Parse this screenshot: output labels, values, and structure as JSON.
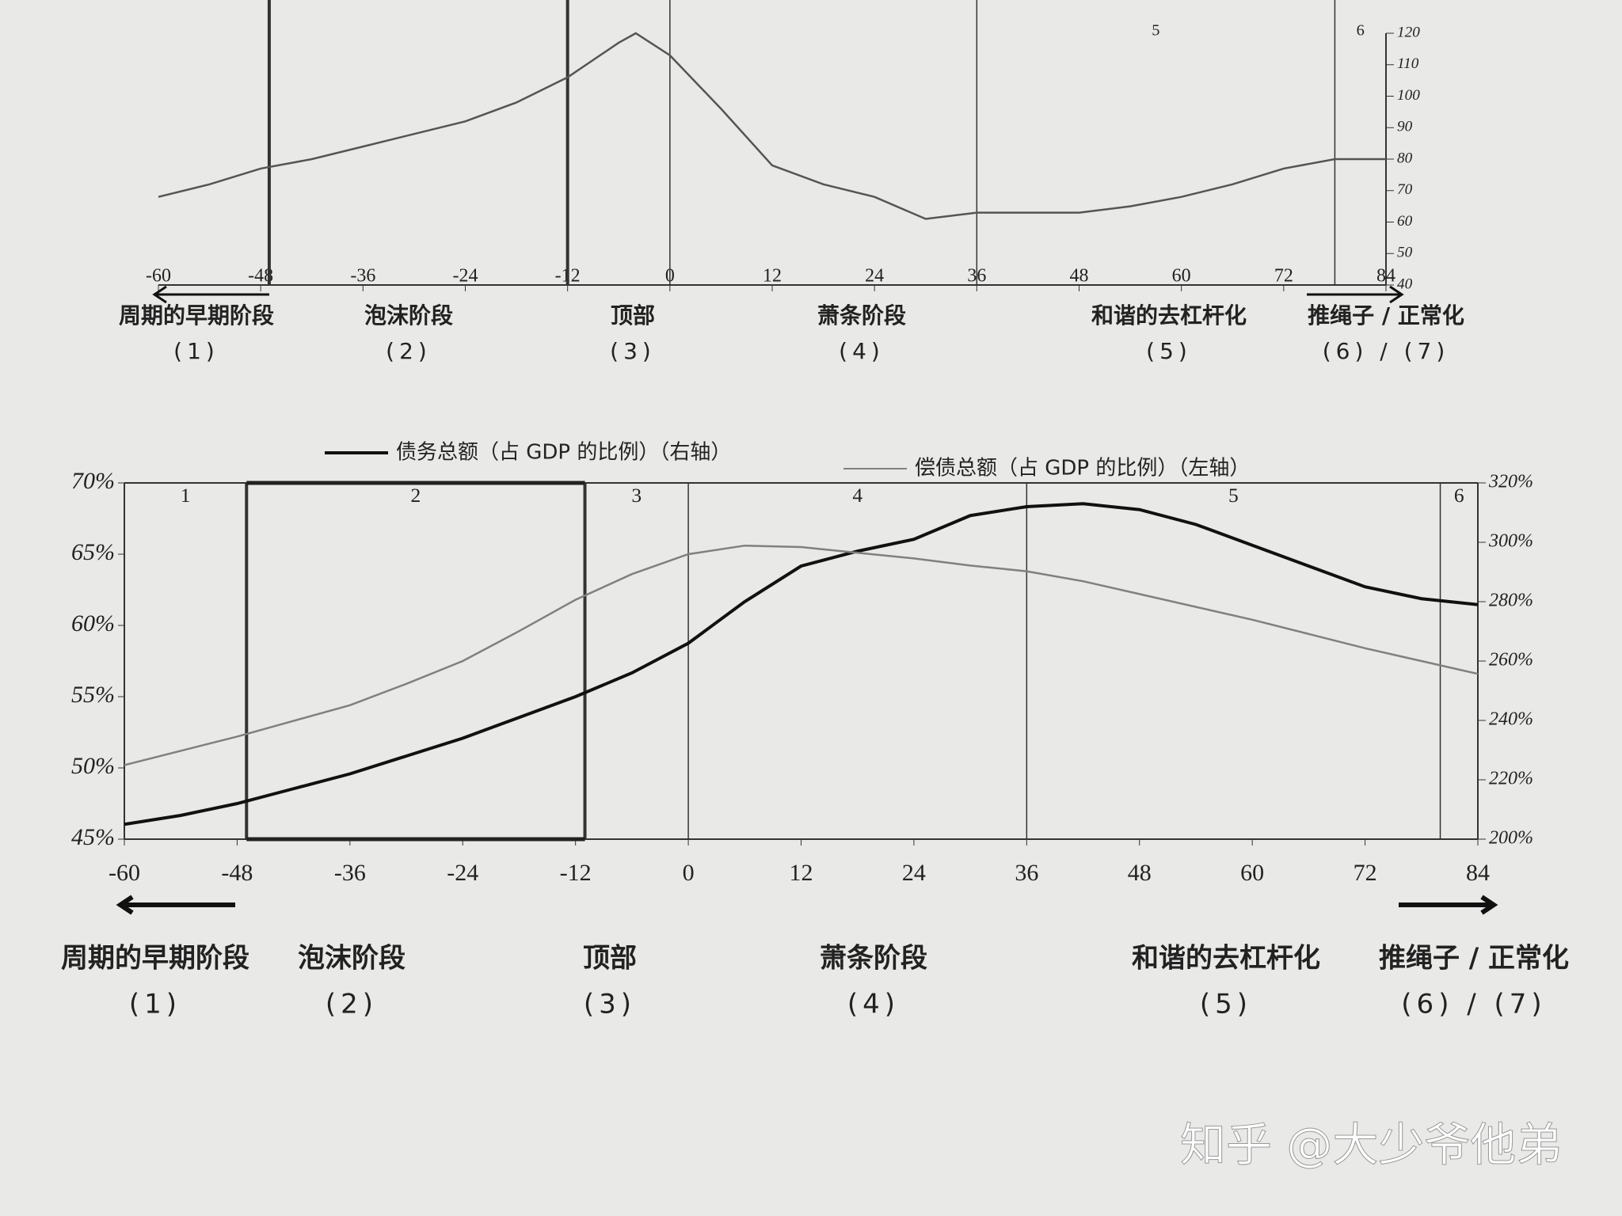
{
  "chart_data": [
    {
      "type": "line",
      "x": [
        -60,
        -54,
        -48,
        -42,
        -36,
        -30,
        -24,
        -18,
        -12,
        -6,
        -4,
        0,
        6,
        12,
        18,
        24,
        30,
        36,
        42,
        48,
        54,
        60,
        66,
        72,
        78,
        84
      ],
      "series": [
        {
          "color": "#555555",
          "axis": "y2",
          "values": [
            68,
            72,
            77,
            80,
            84,
            88,
            92,
            98,
            106,
            117,
            120,
            113,
            96,
            78,
            72,
            68,
            61,
            63,
            63,
            63,
            65,
            68,
            72,
            77,
            80,
            80
          ]
        }
      ],
      "xlim": [
        -60,
        84
      ],
      "xticks": [
        -60,
        -48,
        -36,
        -24,
        -12,
        0,
        12,
        24,
        36,
        48,
        60,
        72,
        84
      ],
      "y2lim": [
        40,
        120
      ],
      "y2ticks": [
        40,
        50,
        60,
        70,
        80,
        90,
        100,
        110,
        120
      ],
      "dividers": [
        -47,
        -12,
        0,
        36,
        78
      ],
      "region_labels": [
        "5",
        "6"
      ],
      "annotations": [
        {
          "name": "周期的早期阶段",
          "number": "(1)"
        },
        {
          "name": "泡沫阶段",
          "number": "(2)"
        },
        {
          "name": "顶部",
          "number": "(3)"
        },
        {
          "name": "萧条阶段",
          "number": "(4)"
        },
        {
          "name": "和谐的去杠杆化",
          "number": "(5)"
        },
        {
          "name": "推绳子 / 正常化",
          "number": "(6) / (7)"
        }
      ]
    },
    {
      "type": "line",
      "x": [
        -60,
        -54,
        -48,
        -42,
        -36,
        -30,
        -24,
        -18,
        -12,
        -6,
        0,
        6,
        12,
        18,
        24,
        30,
        36,
        42,
        48,
        54,
        60,
        66,
        72,
        78,
        84
      ],
      "series": [
        {
          "name": "债务总额（占 GDP 的比例）（右轴）",
          "color": "#111111",
          "axis": "y2",
          "values": [
            205,
            208,
            212,
            217,
            222,
            228,
            234,
            241,
            248,
            256,
            266,
            280,
            292,
            297,
            301,
            309,
            312,
            313,
            311,
            306,
            299,
            292,
            285,
            281,
            279
          ]
        },
        {
          "name": "偿债总额（占 GDP 的比例）（左轴）",
          "color": "#808080",
          "values": [
            50.2,
            51.2,
            52.2,
            53.3,
            54.4,
            55.9,
            57.5,
            59.6,
            61.8,
            63.6,
            65,
            65.6,
            65.5,
            65.1,
            64.7,
            64.2,
            63.8,
            63.1,
            62.2,
            61.3,
            60.4,
            59.4,
            58.4,
            57.5,
            56.6
          ]
        }
      ],
      "xlim": [
        -60,
        84
      ],
      "xticks": [
        -60,
        -48,
        -36,
        -24,
        -12,
        0,
        12,
        24,
        36,
        48,
        60,
        72,
        84
      ],
      "ylim": [
        45,
        70
      ],
      "yticks": [
        {
          "value": 45,
          "label": "45%"
        },
        {
          "value": 50,
          "label": "50%"
        },
        {
          "value": 55,
          "label": "55%"
        },
        {
          "value": 60,
          "label": "60%"
        },
        {
          "value": 65,
          "label": "65%"
        },
        {
          "value": 70,
          "label": "70%"
        }
      ],
      "y2lim": [
        200,
        320
      ],
      "y2ticks": [
        {
          "value": 200,
          "label": "200%"
        },
        {
          "value": 220,
          "label": "220%"
        },
        {
          "value": 240,
          "label": "240%"
        },
        {
          "value": 260,
          "label": "260%"
        },
        {
          "value": 280,
          "label": "280%"
        },
        {
          "value": 300,
          "label": "300%"
        },
        {
          "value": 320,
          "label": "320%"
        }
      ],
      "dividers": [
        -47,
        -11,
        0,
        36,
        80
      ],
      "region_labels": [
        "1",
        "2",
        "3",
        "4",
        "5",
        "6"
      ],
      "annotations": [
        {
          "name": "周期的早期阶段",
          "number": "(1)"
        },
        {
          "name": "泡沫阶段",
          "number": "(2)"
        },
        {
          "name": "顶部",
          "number": "(3)"
        },
        {
          "name": "萧条阶段",
          "number": "(4)"
        },
        {
          "name": "和谐的去杠杆化",
          "number": "(5)"
        },
        {
          "name": "推绳子 / 正常化",
          "number": "(6) / (7)"
        }
      ]
    }
  ],
  "watermark": "知乎 @大少爷他弟"
}
